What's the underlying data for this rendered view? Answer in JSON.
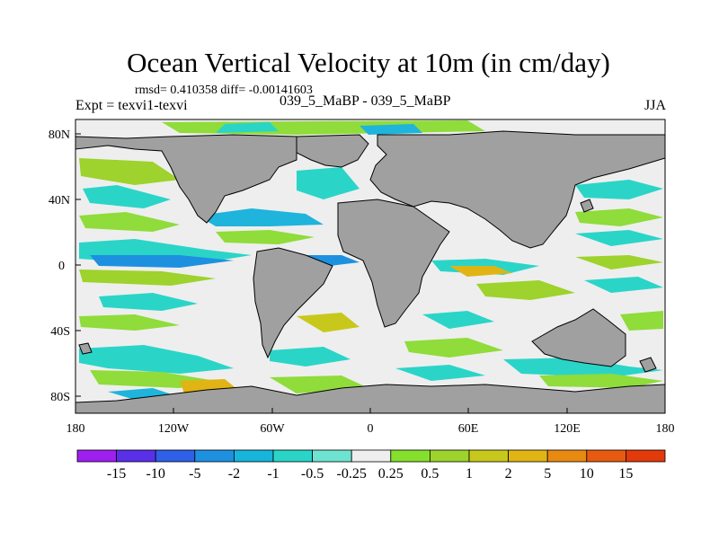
{
  "title": "Ocean Vertical Velocity at 10m (in cm/day)",
  "stats": "rmsd= 0.410358 diff= -0.00141603",
  "experiment": "Expt = texvi1-texvi",
  "case": "039_5_MaBP - 039_5_MaBP",
  "season": "JJA",
  "axes": {
    "lon_ticks": [
      "180",
      "120W",
      "60W",
      "0",
      "60E",
      "120E",
      "180"
    ],
    "lat_ticks": [
      "80N",
      "40N",
      "0",
      "40S",
      "80S"
    ]
  },
  "colorbar": {
    "labels": [
      "-15",
      "-10",
      "-5",
      "-2",
      "-1",
      "-0.5",
      "-0.25",
      "0.25",
      "0.5",
      "1",
      "2",
      "5",
      "10",
      "15"
    ],
    "colors": [
      "#9f1fef",
      "#5a2fe8",
      "#2f60e8",
      "#1e90e0",
      "#17b4dc",
      "#2ad5c8",
      "#6fe3d2",
      "#eeeeee",
      "#84e02c",
      "#9ed22c",
      "#c8c81c",
      "#e0b414",
      "#e88a10",
      "#e85a10",
      "#e23a0a"
    ]
  },
  "colors": {
    "land": "#a0a0a0",
    "ocean_background": "#eeeeee",
    "coast": "#000000"
  }
}
